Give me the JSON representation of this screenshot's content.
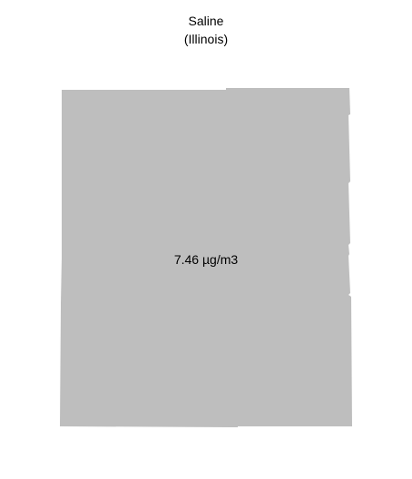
{
  "map": {
    "county": "Saline",
    "state": "(Illinois)",
    "value_label": "7.46 µg/m3",
    "fill_color": "#bebebe",
    "background_color": "#ffffff"
  }
}
